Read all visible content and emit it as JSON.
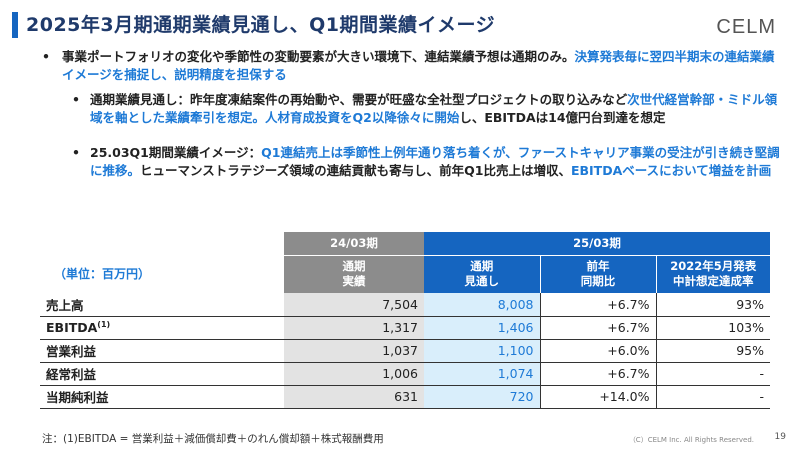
{
  "title": "2025年3月期通期業績見通し、Q1期間業績イメージ",
  "logo": "CELM",
  "bullet_main": {
    "text_plain": "事業ポートフォリオの変化や季節性の変動要素が大きい環境下、連結業績予想は通期のみ。",
    "text_blue": "決算発表毎に翌四半期末の連結業績イメージを捕捉し、説明精度を担保する"
  },
  "sub1": {
    "plain1": "通期業績見通し：昨年度凍結案件の再始動や、需要が旺盛な全社型プロジェクトの取り込みな",
    "plain2": "ど",
    "blue1": "次世代経営幹部・ミドル領域を軸とした業績牽引を想定。人材育成投資をQ2以降徐々に開始",
    "plain3": "し、EBITDAは14億円台到達を想定"
  },
  "sub2": {
    "plain1": "25.03Q1期間業績イメージ：",
    "blue1": "Q1連結売上は季節性上例年通り落ち着くが、ファーストキャリア事業の受注が引き続き堅調に推移。",
    "plain2": "ヒューマンストラテジーズ領域の連結貢献も寄与し、前年Q1比売上は増収、",
    "blue2": "EBITDAベースにおいて増益を計画"
  },
  "table": {
    "unit": "（単位：百万円）",
    "group_prev": "24/03期",
    "group_curr": "25/03期",
    "col_actual_1": "通期",
    "col_actual_2": "実績",
    "col_fc_1": "通期",
    "col_fc_2": "見通し",
    "col_yoy_1": "前年",
    "col_yoy_2": "同期比",
    "col_plan_1": "2022年5月発表",
    "col_plan_2": "中計想定達成率",
    "rows": [
      {
        "label": "売上高",
        "sup": "",
        "actual": "7,504",
        "forecast": "8,008",
        "yoy": "+6.7%",
        "plan": "93%"
      },
      {
        "label": "EBITDA",
        "sup": "(1)",
        "actual": "1,317",
        "forecast": "1,406",
        "yoy": "+6.7%",
        "plan": "103%"
      },
      {
        "label": "営業利益",
        "sup": "",
        "actual": "1,037",
        "forecast": "1,100",
        "yoy": "+6.0%",
        "plan": "95%"
      },
      {
        "label": "経常利益",
        "sup": "",
        "actual": "1,006",
        "forecast": "1,074",
        "yoy": "+6.7%",
        "plan": "-"
      },
      {
        "label": "当期純利益",
        "sup": "",
        "actual": "631",
        "forecast": "720",
        "yoy": "+14.0%",
        "plan": "-"
      }
    ]
  },
  "footnote": "注：(1)EBITDA = 営業利益＋減価償却費＋のれん償却額＋株式報酬費用",
  "copyright": "（C）CELM Inc. All Rights Reserved.",
  "page_number": "19"
}
